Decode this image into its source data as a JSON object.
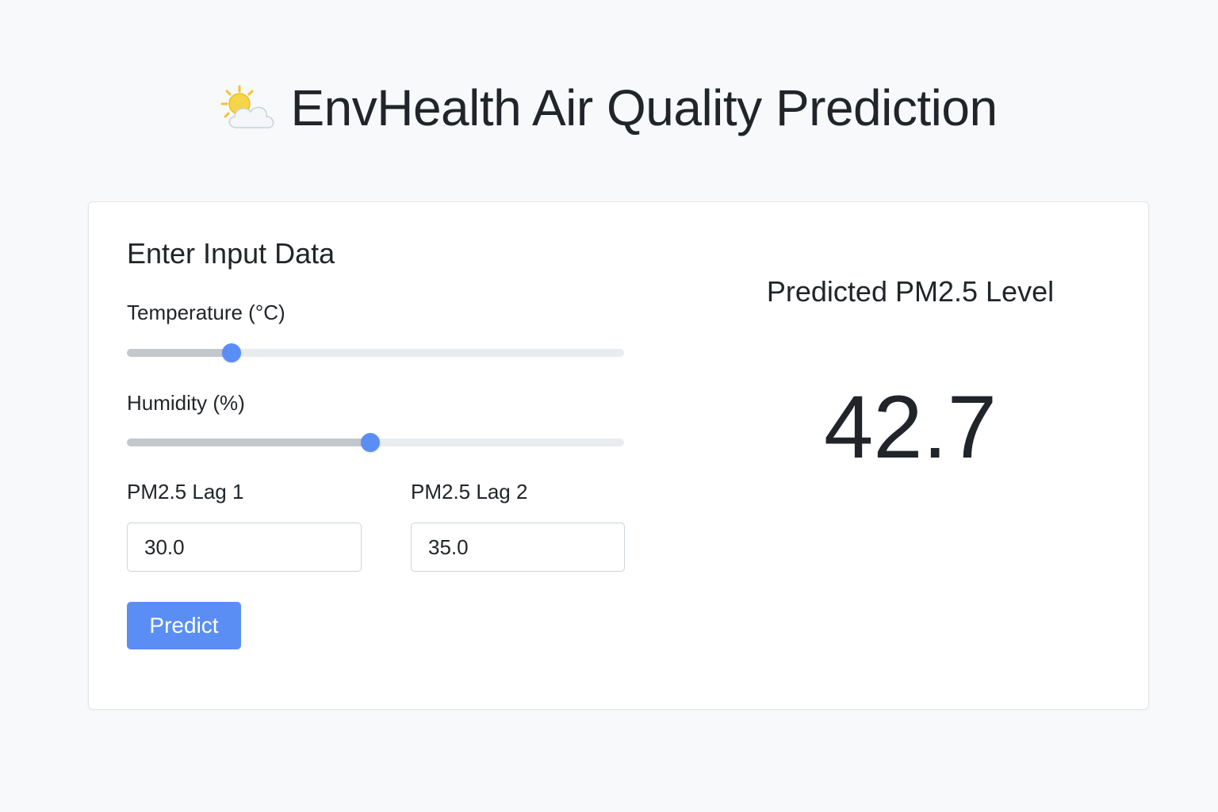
{
  "header": {
    "icon": "sun-behind-cloud-icon",
    "title": "EnvHealth Air Quality Prediction"
  },
  "form": {
    "title": "Enter Input Data",
    "temperature": {
      "label": "Temperature (°C)",
      "fraction": 0.21
    },
    "humidity": {
      "label": "Humidity (%)",
      "fraction": 0.49
    },
    "lag1": {
      "label": "PM2.5 Lag 1",
      "value": "30.0"
    },
    "lag2": {
      "label": "PM2.5 Lag 2",
      "value": "35.0"
    },
    "predict_label": "Predict"
  },
  "result": {
    "title": "Predicted PM2.5 Level",
    "value": "42.7"
  },
  "colors": {
    "accent": "#5b8ef5",
    "background": "#f8f9fa",
    "card": "#ffffff",
    "text": "#212529"
  }
}
